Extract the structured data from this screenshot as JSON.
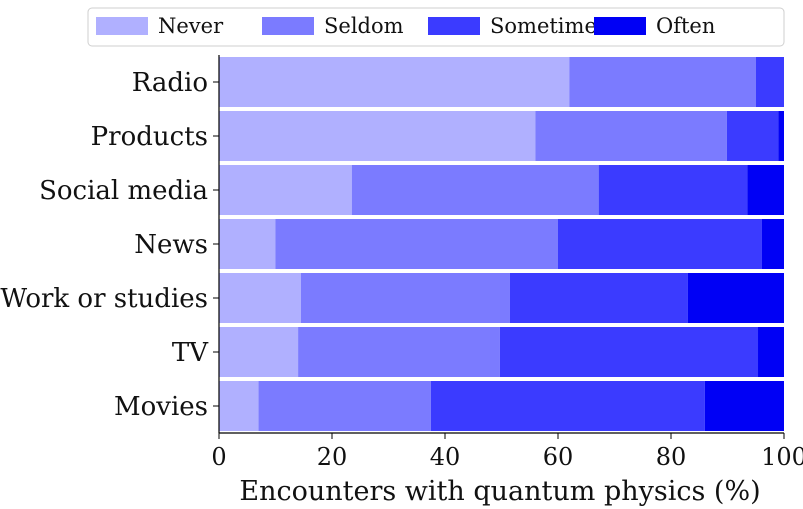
{
  "chart_data": {
    "type": "bar",
    "orientation": "horizontal",
    "stacked": true,
    "categories": [
      "Radio",
      "Products",
      "Social media",
      "News",
      "Work or studies",
      "TV",
      "Movies"
    ],
    "series": [
      {
        "name": "Never",
        "color": "#b0b0ff",
        "values": [
          62.0,
          56.0,
          23.5,
          10.0,
          14.5,
          14.0,
          7.0
        ]
      },
      {
        "name": "Seldom",
        "color": "#7b7bff",
        "values": [
          33.0,
          33.9,
          43.7,
          50.0,
          37.0,
          35.7,
          30.5
        ]
      },
      {
        "name": "Sometimes",
        "color": "#3b3bff",
        "values": [
          5.0,
          9.1,
          26.3,
          36.1,
          31.5,
          45.7,
          48.5
        ]
      },
      {
        "name": "Often",
        "color": "#0000f5",
        "values": [
          0.0,
          1.0,
          6.5,
          3.9,
          17.0,
          4.6,
          14.0
        ]
      }
    ],
    "xlabel": "Encounters with quantum physics (%)",
    "ylabel": "",
    "xlim": [
      0,
      100
    ],
    "xticks": [
      0,
      20,
      40,
      60,
      80,
      100
    ],
    "legend_position": "top",
    "grid": false
  }
}
